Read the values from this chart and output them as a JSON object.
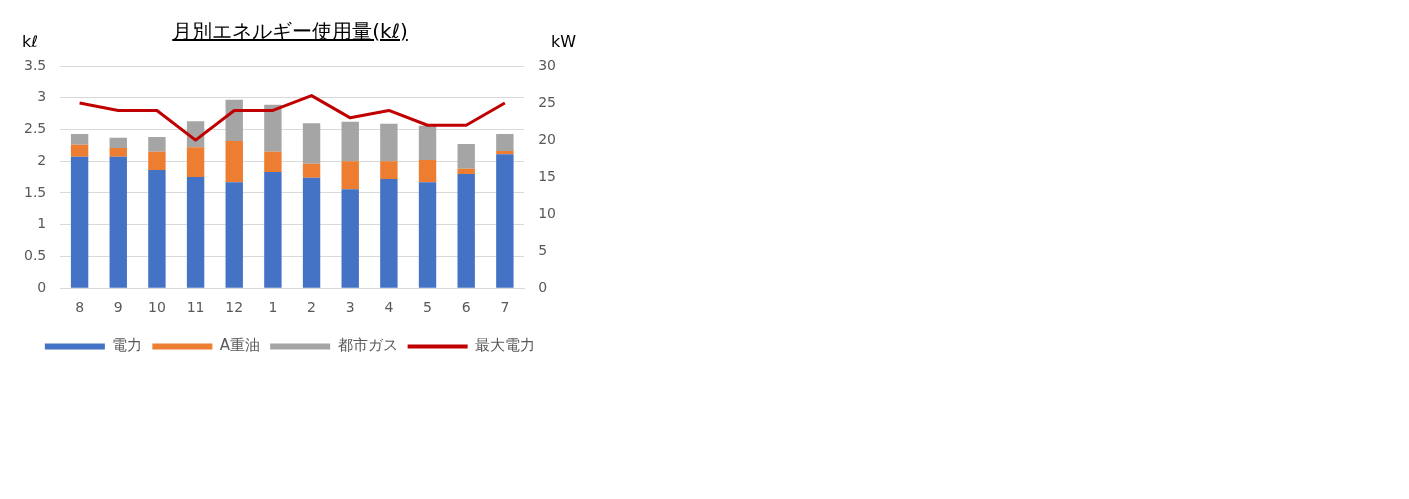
{
  "chart_data": {
    "type": "bar",
    "title": "月別エネルギー使用量(kℓ)",
    "ylabel": "kℓ",
    "y2label": "kW",
    "categories": [
      "8",
      "9",
      "10",
      "11",
      "12",
      "1",
      "2",
      "3",
      "4",
      "5",
      "6",
      "7"
    ],
    "stacked": true,
    "series": [
      {
        "name": "電力",
        "color": "#4472c4",
        "values": [
          2.07,
          2.07,
          1.86,
          1.75,
          1.67,
          1.83,
          1.74,
          1.56,
          1.72,
          1.67,
          1.8,
          2.11
        ]
      },
      {
        "name": "A重油",
        "color": "#ed7d31",
        "values": [
          0.19,
          0.14,
          0.29,
          0.47,
          0.65,
          0.32,
          0.22,
          0.44,
          0.28,
          0.35,
          0.08,
          0.05
        ]
      },
      {
        "name": "都市ガス",
        "color": "#a5a5a5",
        "values": [
          0.17,
          0.16,
          0.23,
          0.41,
          0.65,
          0.74,
          0.64,
          0.62,
          0.59,
          0.54,
          0.39,
          0.27
        ]
      },
      {
        "name": "最大電力",
        "type": "line",
        "axis": "y2",
        "color": "#c00000",
        "values": [
          25,
          24,
          24,
          20,
          24,
          24,
          26,
          23,
          24,
          22,
          22,
          25
        ]
      }
    ],
    "ylim": [
      0,
      3.5
    ],
    "yticks": [
      0,
      0.5,
      1,
      1.5,
      2,
      2.5,
      3,
      3.5
    ],
    "y2lim": [
      0,
      30
    ],
    "y2ticks": [
      0,
      5,
      10,
      15,
      20,
      25,
      30
    ],
    "grid": "y",
    "legend": "bottom",
    "marker": "none",
    "line_style": "solid"
  }
}
